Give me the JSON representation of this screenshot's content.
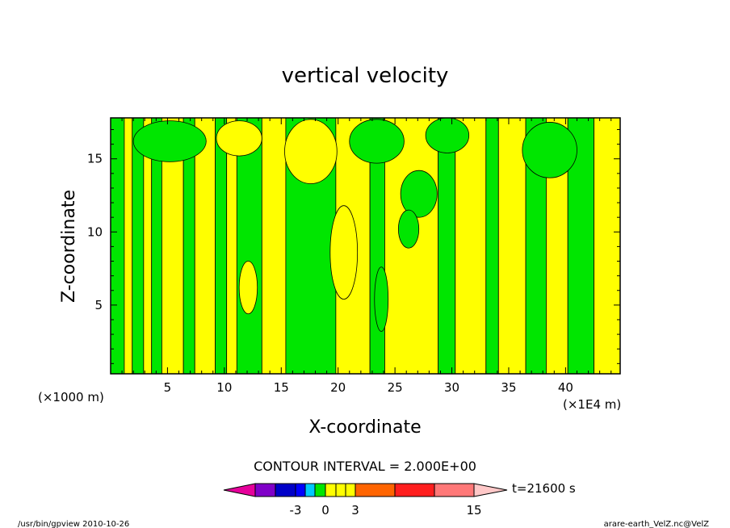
{
  "chart_data": {
    "type": "heatmap",
    "title": "vertical velocity",
    "xlabel": "X-coordinate",
    "ylabel": "Z-coordinate",
    "x_unit": "(×1000 m)",
    "x_multiplier": "(×1E4 m)",
    "xlim": [
      0,
      44.8
    ],
    "ylim": [
      0.3,
      17.8
    ],
    "xticks": [
      "5",
      "10",
      "15",
      "20",
      "25",
      "30",
      "35",
      "40"
    ],
    "yticks": [
      "5",
      "10",
      "15"
    ],
    "colors": {
      "negative": "#00e600",
      "positive": "#ffff00"
    },
    "columns": [
      {
        "x0": 0,
        "x1": 1.2,
        "sign": "negative"
      },
      {
        "x0": 1.2,
        "x1": 1.9,
        "sign": "positive"
      },
      {
        "x0": 1.9,
        "x1": 2.9,
        "sign": "negative"
      },
      {
        "x0": 2.9,
        "x1": 3.6,
        "sign": "positive"
      },
      {
        "x0": 3.6,
        "x1": 4.5,
        "sign": "negative"
      },
      {
        "x0": 4.5,
        "x1": 6.4,
        "sign": "positive"
      },
      {
        "x0": 6.4,
        "x1": 7.4,
        "sign": "negative"
      },
      {
        "x0": 7.4,
        "x1": 9.2,
        "sign": "positive"
      },
      {
        "x0": 9.2,
        "x1": 10.2,
        "sign": "negative"
      },
      {
        "x0": 10.2,
        "x1": 11.1,
        "sign": "positive"
      },
      {
        "x0": 11.1,
        "x1": 13.3,
        "sign": "negative"
      },
      {
        "x0": 13.3,
        "x1": 15.4,
        "sign": "positive"
      },
      {
        "x0": 15.4,
        "x1": 19.8,
        "sign": "negative"
      },
      {
        "x0": 19.8,
        "x1": 22.8,
        "sign": "positive"
      },
      {
        "x0": 22.8,
        "x1": 24.1,
        "sign": "negative"
      },
      {
        "x0": 24.1,
        "x1": 28.8,
        "sign": "positive"
      },
      {
        "x0": 28.8,
        "x1": 30.3,
        "sign": "negative"
      },
      {
        "x0": 30.3,
        "x1": 33.0,
        "sign": "positive"
      },
      {
        "x0": 33.0,
        "x1": 34.1,
        "sign": "negative"
      },
      {
        "x0": 34.1,
        "x1": 36.5,
        "sign": "positive"
      },
      {
        "x0": 36.5,
        "x1": 38.3,
        "sign": "negative"
      },
      {
        "x0": 38.3,
        "x1": 40.2,
        "sign": "positive"
      },
      {
        "x0": 40.2,
        "x1": 42.5,
        "sign": "negative"
      },
      {
        "x0": 42.5,
        "x1": 44.8,
        "sign": "positive"
      }
    ],
    "blobs": [
      {
        "x": 5.2,
        "y": 16.2,
        "rx": 3.2,
        "ry": 1.4,
        "sign": "negative"
      },
      {
        "x": 11.3,
        "y": 16.4,
        "rx": 2.0,
        "ry": 1.2,
        "sign": "positive"
      },
      {
        "x": 17.6,
        "y": 15.5,
        "rx": 2.3,
        "ry": 2.2,
        "sign": "positive"
      },
      {
        "x": 23.4,
        "y": 16.2,
        "rx": 2.4,
        "ry": 1.5,
        "sign": "negative"
      },
      {
        "x": 27.1,
        "y": 12.6,
        "rx": 1.6,
        "ry": 1.6,
        "sign": "negative"
      },
      {
        "x": 29.6,
        "y": 16.6,
        "rx": 1.9,
        "ry": 1.2,
        "sign": "negative"
      },
      {
        "x": 38.6,
        "y": 15.6,
        "rx": 2.4,
        "ry": 1.9,
        "sign": "negative"
      },
      {
        "x": 20.5,
        "y": 8.6,
        "rx": 1.2,
        "ry": 3.2,
        "sign": "positive"
      },
      {
        "x": 26.2,
        "y": 10.2,
        "rx": 0.9,
        "ry": 1.3,
        "sign": "negative"
      },
      {
        "x": 23.8,
        "y": 5.4,
        "rx": 0.6,
        "ry": 2.2,
        "sign": "negative"
      },
      {
        "x": 12.1,
        "y": 6.2,
        "rx": 0.8,
        "ry": 1.8,
        "sign": "positive"
      }
    ],
    "annotation": "CONTOUR INTERVAL = 2.000E+00",
    "colorbar": {
      "colors": [
        "#e6009b",
        "#8000c8",
        "#0000c8",
        "#0000ff",
        "#00c8ff",
        "#00e600",
        "#ffff00",
        "#ffff00",
        "#ffff00",
        "#ff6400",
        "#ff1e1e",
        "#ff7878",
        "#ffc8c8"
      ],
      "tick_labels": [
        "-3",
        "0",
        "3",
        "15"
      ],
      "time_label": "t=21600 s"
    }
  },
  "footer": {
    "left": "/usr/bin/gpview   2010-10-26",
    "right": "arare-earth_VelZ.nc@VelZ"
  }
}
